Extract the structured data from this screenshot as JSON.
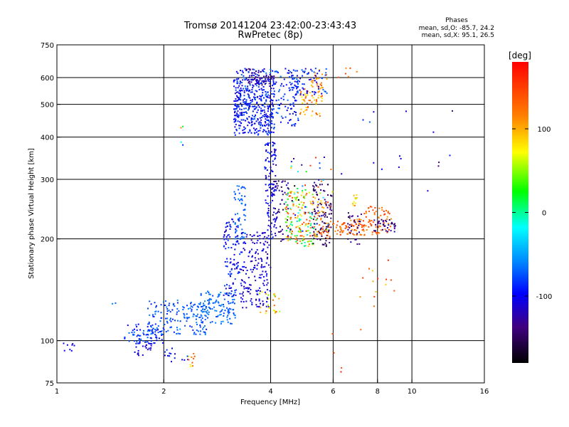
{
  "chart_data": {
    "type": "scatter",
    "title": "Tromsø 20141204 23:42:00-23:43:43",
    "subtitle": "RwPretec (8p)",
    "xlabel": "Frequency [MHz]",
    "ylabel": "Stationary phase Virtual Height [km]",
    "x_scale": "log",
    "y_scale": "log",
    "xlim": [
      1,
      16
    ],
    "ylim": [
      75,
      750
    ],
    "x_ticks": [
      1,
      2,
      4,
      6,
      8,
      10,
      16
    ],
    "x_tick_labels": [
      "1",
      "2",
      "4",
      "6",
      "8",
      "10",
      "16"
    ],
    "y_ticks": [
      75,
      100,
      200,
      300,
      400,
      500,
      600,
      750
    ],
    "y_tick_labels": [
      "75",
      "100",
      "200",
      "300",
      "400",
      "500",
      "600",
      "750"
    ],
    "grid": true,
    "stats": {
      "heading": "Phases",
      "o_line": "mean, sd,O: -85.7, 24.2",
      "x_line": "mean, sd,X:  95.1, 26.5"
    },
    "colorbar": {
      "label": "[deg]",
      "range": [
        -180,
        180
      ],
      "ticks": [
        100,
        0,
        -100
      ],
      "tick_labels": [
        "100",
        "0",
        "-100"
      ]
    },
    "point_groups": [
      {
        "xr": [
          1.03,
          1.12
        ],
        "yr": [
          92,
          99
        ],
        "pr": [
          -115,
          -90
        ],
        "n": 8
      },
      {
        "xr": [
          1.42,
          1.47
        ],
        "yr": [
          125,
          135
        ],
        "pr": [
          -70,
          -60
        ],
        "n": 2
      },
      {
        "xr": [
          1.55,
          2.0
        ],
        "yr": [
          98,
          112
        ],
        "pr": [
          -105,
          -65
        ],
        "n": 70
      },
      {
        "xr": [
          1.65,
          1.85
        ],
        "yr": [
          90,
          100
        ],
        "pr": [
          -120,
          -90
        ],
        "n": 25
      },
      {
        "xr": [
          1.8,
          2.7
        ],
        "yr": [
          104,
          132
        ],
        "pr": [
          -90,
          -55
        ],
        "n": 160
      },
      {
        "xr": [
          2.0,
          2.4
        ],
        "yr": [
          86,
          96
        ],
        "pr": [
          -110,
          -80
        ],
        "n": 15
      },
      {
        "xr": [
          2.35,
          2.45
        ],
        "yr": [
          82,
          92
        ],
        "pr": [
          60,
          140
        ],
        "n": 10
      },
      {
        "xr": [
          2.5,
          3.2
        ],
        "yr": [
          112,
          140
        ],
        "pr": [
          -80,
          -55
        ],
        "n": 120
      },
      {
        "xr": [
          2.95,
          3.3
        ],
        "yr": [
          135,
          230
        ],
        "pr": [
          -120,
          -70
        ],
        "n": 110
      },
      {
        "xr": [
          3.15,
          3.4
        ],
        "yr": [
          200,
          290
        ],
        "pr": [
          -80,
          -55
        ],
        "n": 55
      },
      {
        "xr": [
          3.3,
          4.0
        ],
        "yr": [
          125,
          210
        ],
        "pr": [
          -130,
          -90
        ],
        "n": 170
      },
      {
        "xr": [
          3.7,
          4.25
        ],
        "yr": [
          120,
          140
        ],
        "pr": [
          40,
          130
        ],
        "n": 25
      },
      {
        "xr": [
          3.85,
          4.15
        ],
        "yr": [
          200,
          390
        ],
        "pr": [
          -120,
          -80
        ],
        "n": 110
      },
      {
        "xr": [
          4.0,
          4.5
        ],
        "yr": [
          195,
          300
        ],
        "pr": [
          -160,
          -110
        ],
        "n": 60
      },
      {
        "xr": [
          4.4,
          5.4
        ],
        "yr": [
          190,
          280
        ],
        "pr": [
          -20,
          150
        ],
        "n": 170
      },
      {
        "xr": [
          5.2,
          5.95
        ],
        "yr": [
          190,
          290
        ],
        "pr": [
          -165,
          -130
        ],
        "n": 100
      },
      {
        "xr": [
          5.3,
          5.9
        ],
        "yr": [
          200,
          260
        ],
        "pr": [
          80,
          150
        ],
        "n": 40
      },
      {
        "xr": [
          4.5,
          6.0
        ],
        "yr": [
          210,
          350
        ],
        "pr": [
          -180,
          180
        ],
        "n": 60
      },
      {
        "xr": [
          6.0,
          7.3
        ],
        "yr": [
          205,
          230
        ],
        "pr": [
          100,
          150
        ],
        "n": 70
      },
      {
        "xr": [
          6.6,
          7.2
        ],
        "yr": [
          190,
          240
        ],
        "pr": [
          -160,
          -120
        ],
        "n": 30
      },
      {
        "xr": [
          6.8,
          7.0
        ],
        "yr": [
          250,
          270
        ],
        "pr": [
          60,
          120
        ],
        "n": 12
      },
      {
        "xr": [
          7.3,
          8.8
        ],
        "yr": [
          205,
          250
        ],
        "pr": [
          100,
          160
        ],
        "n": 70
      },
      {
        "xr": [
          7.8,
          9.0
        ],
        "yr": [
          210,
          230
        ],
        "pr": [
          -160,
          -120
        ],
        "n": 35
      },
      {
        "xr": [
          3.15,
          4.1
        ],
        "yr": [
          405,
          600
        ],
        "pr": [
          -115,
          -75
        ],
        "n": 330
      },
      {
        "xr": [
          3.2,
          4.8
        ],
        "yr": [
          430,
          640
        ],
        "pr": [
          -110,
          -60
        ],
        "n": 200
      },
      {
        "xr": [
          3.4,
          4.1
        ],
        "yr": [
          570,
          640
        ],
        "pr": [
          -150,
          -110
        ],
        "n": 60
      },
      {
        "xr": [
          4.8,
          5.6
        ],
        "yr": [
          460,
          560
        ],
        "pr": [
          70,
          140
        ],
        "n": 55
      },
      {
        "xr": [
          5.2,
          5.8
        ],
        "yr": [
          560,
          640
        ],
        "pr": [
          80,
          140
        ],
        "n": 25
      },
      {
        "xr": [
          4.5,
          5.8
        ],
        "yr": [
          530,
          640
        ],
        "pr": [
          -120,
          -60
        ],
        "n": 80
      },
      {
        "xr": [
          6.2,
          7.0
        ],
        "yr": [
          600,
          650
        ],
        "pr": [
          100,
          150
        ],
        "n": 6
      },
      {
        "xr": [
          2.2,
          2.3
        ],
        "yr": [
          370,
          440
        ],
        "pr": [
          -160,
          120
        ],
        "n": 4
      },
      {
        "xr": [
          6.3,
          11.0
        ],
        "yr": [
          300,
          520
        ],
        "pr": [
          -120,
          -60
        ],
        "n": 10
      },
      {
        "xr": [
          11.0,
          13.6
        ],
        "yr": [
          270,
          560
        ],
        "pr": [
          -160,
          -80
        ],
        "n": 6
      },
      {
        "xr": [
          7.0,
          9.0
        ],
        "yr": [
          120,
          175
        ],
        "pr": [
          80,
          160
        ],
        "n": 14
      },
      {
        "xr": [
          4.8,
          7.5
        ],
        "yr": [
          80,
          110
        ],
        "pr": [
          120,
          170
        ],
        "n": 5
      }
    ]
  }
}
